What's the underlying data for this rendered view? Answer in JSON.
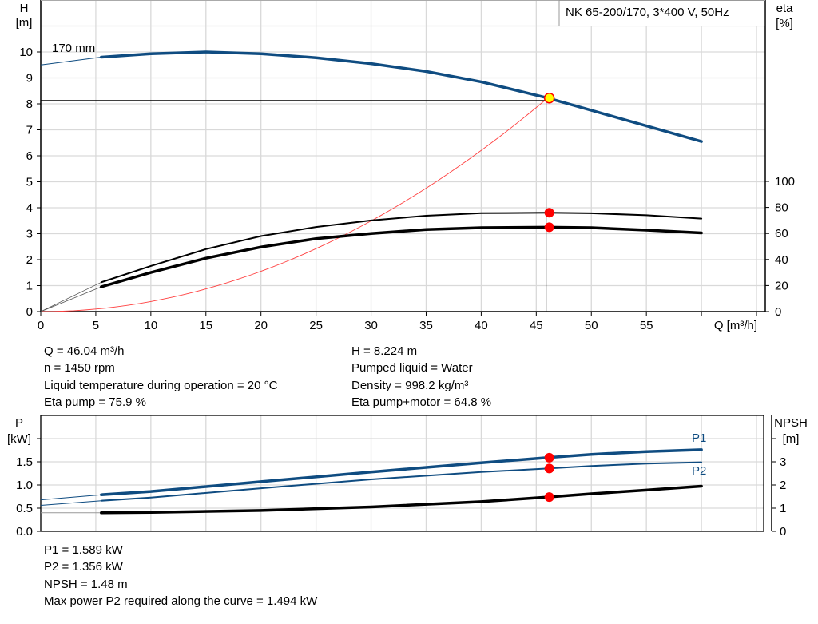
{
  "colors": {
    "head": "#0f4c81",
    "eta": "#000000",
    "system": "#ff4040",
    "point": "#ff0000",
    "duty": "#ffff00",
    "grid": "#d9d9d9"
  },
  "chart_data": [
    {
      "type": "line",
      "legend_box": "NK 65-200/170, 3*400 V, 50Hz",
      "xlabel": "Q [m³/h]",
      "ylabel": [
        "H",
        "[m]"
      ],
      "y2label": [
        "eta",
        "[%]"
      ],
      "xlim": [
        0,
        65
      ],
      "ylim": [
        0,
        11
      ],
      "y2lim": [
        0,
        100
      ],
      "xticks": [
        0,
        5,
        10,
        15,
        20,
        25,
        30,
        35,
        40,
        45,
        50,
        55
      ],
      "yticks": [
        0,
        1,
        2,
        3,
        4,
        5,
        6,
        7,
        8,
        9,
        10
      ],
      "y2ticks": [
        0,
        20,
        40,
        60,
        80,
        100
      ],
      "grid": true,
      "curve_label": "170 mm",
      "series": [
        {
          "key": "head",
          "axis": "H",
          "thin_until": 5.5,
          "x": [
            0,
            5.5,
            10,
            15,
            20,
            25,
            30,
            35,
            40,
            46.04,
            50,
            55,
            60
          ],
          "y": [
            9.5,
            9.8,
            9.93,
            10.0,
            9.93,
            9.78,
            9.55,
            9.25,
            8.85,
            8.224,
            7.75,
            7.15,
            6.55
          ]
        },
        {
          "key": "eta_pump",
          "axis": "eta",
          "thin_until": 5.5,
          "x": [
            0,
            5.5,
            10,
            15,
            20,
            25,
            30,
            35,
            40,
            46.04,
            50,
            55,
            60
          ],
          "y": [
            0,
            22.5,
            35,
            48,
            58,
            65,
            70,
            73.6,
            75.6,
            75.9,
            75.5,
            74,
            71.4
          ]
        },
        {
          "key": "eta_pump_motor",
          "axis": "eta",
          "thin_until": 5.5,
          "x": [
            0,
            5.5,
            10,
            15,
            20,
            25,
            30,
            35,
            40,
            46.04,
            50,
            55,
            60
          ],
          "y": [
            0,
            19,
            30,
            41,
            49.6,
            56,
            60,
            63,
            64.4,
            64.8,
            64.4,
            62.6,
            60.4
          ]
        },
        {
          "key": "system",
          "axis": "H",
          "formula_k": 0.00388,
          "x_range": [
            0,
            46.04
          ]
        }
      ],
      "duty_point": {
        "Q": 46.04,
        "H": 8.224,
        "eta_pump": 75.9,
        "eta_pump_motor": 64.8
      }
    },
    {
      "type": "line",
      "ylabel": [
        "P",
        "[kW]"
      ],
      "y2label": [
        "NPSH",
        "[m]"
      ],
      "xlim": [
        0,
        65
      ],
      "ylim": [
        0,
        2.5
      ],
      "y2lim": [
        0,
        5
      ],
      "yticks": [
        "0.0",
        "0.5",
        "1.0",
        "1.5"
      ],
      "y2ticks": [
        0,
        1,
        2,
        3
      ],
      "grid": true,
      "series": [
        {
          "key": "P1",
          "name": "P1",
          "axis": "P",
          "thin_until": 5.5,
          "x": [
            0,
            5.5,
            10,
            20,
            30,
            40,
            46.04,
            50,
            55,
            60
          ],
          "y": [
            0.68,
            0.79,
            0.86,
            1.07,
            1.28,
            1.48,
            1.589,
            1.66,
            1.72,
            1.76
          ]
        },
        {
          "key": "P2",
          "name": "P2",
          "axis": "P",
          "thin_until": 5.5,
          "x": [
            0,
            5.5,
            10,
            20,
            30,
            40,
            46.04,
            50,
            55,
            60
          ],
          "y": [
            0.56,
            0.66,
            0.73,
            0.93,
            1.12,
            1.28,
            1.356,
            1.41,
            1.46,
            1.49
          ]
        },
        {
          "key": "NPSH",
          "axis": "NPSH",
          "thin_until": 5.5,
          "x": [
            0,
            5.5,
            10,
            20,
            30,
            40,
            46.04,
            50,
            55,
            60
          ],
          "y": [
            0.8,
            0.8,
            0.82,
            0.9,
            1.05,
            1.28,
            1.48,
            1.62,
            1.78,
            1.95
          ]
        }
      ],
      "duty_point": {
        "Q": 46.04,
        "P1": 1.589,
        "P2": 1.356,
        "NPSH": 1.48
      }
    }
  ],
  "info_top": {
    "left": [
      "Q = 46.04 m³/h",
      "n = 1450 rpm",
      "Liquid temperature during operation = 20 °C",
      "Eta pump = 75.9 %"
    ],
    "right": [
      "H = 8.224 m",
      "Pumped liquid = Water",
      "Density = 998.2 kg/m³",
      "Eta pump+motor = 64.8 %"
    ]
  },
  "info_bottom": [
    "P1 = 1.589 kW",
    "P2 = 1.356 kW",
    "NPSH = 1.48 m",
    "Max power P2 required along the curve = 1.494 kW"
  ]
}
